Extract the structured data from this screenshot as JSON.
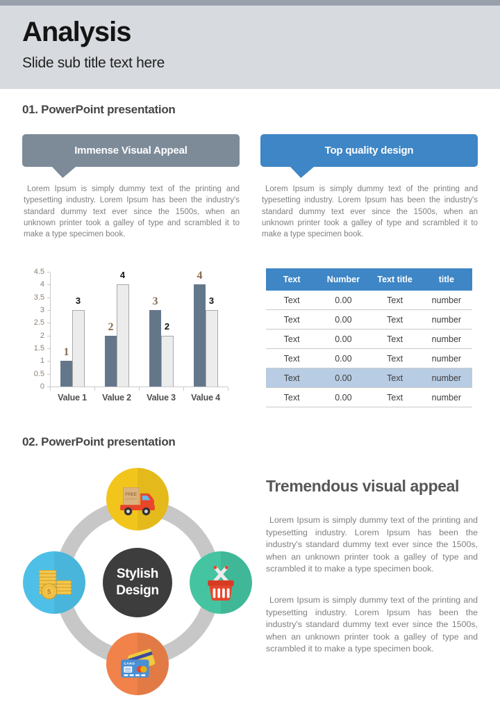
{
  "colors": {
    "top_strip": "#98a1ab",
    "header_bg": "#d7dade",
    "callout_gray": "#7d8b99",
    "callout_blue": "#3e86c6",
    "ring_gray": "#c7c7c7",
    "center_circle": "#3d3d3d",
    "heading_text": "#454545",
    "body_text": "#7f7f7f"
  },
  "page": {
    "title": "Analysis",
    "subtitle": "Slide sub title text here"
  },
  "section1": {
    "heading": "01. PowerPoint presentation",
    "left_callout": "Immense Visual Appeal",
    "right_callout": "Top quality design",
    "left_paragraph": "Lorem Ipsum is simply dummy text of the printing and typesetting industry. Lorem Ipsum has been the industry's standard dummy text ever since the 1500s, when an unknown printer took a galley of type and scrambled it to make a type specimen book.",
    "right_paragraph": "Lorem Ipsum is simply dummy text of the printing and typesetting industry. Lorem Ipsum has been the industry's standard dummy text ever since the 1500s, when an unknown printer took a galley of type and scrambled it to make a type specimen book."
  },
  "chart_data": {
    "type": "bar",
    "categories": [
      "Value 1",
      "Value 2",
      "Value 3",
      "Value 4"
    ],
    "series": [
      {
        "name": "series-dark",
        "color": "#64778a",
        "label_color": "#8c6b4f",
        "values": [
          1,
          2,
          3,
          4
        ]
      },
      {
        "name": "series-light",
        "color": "#ececec",
        "label_color": "#141414",
        "values": [
          3,
          4,
          2,
          3
        ]
      }
    ],
    "title": "",
    "xlabel": "",
    "ylabel": "",
    "ylim": [
      0,
      4.5
    ],
    "yticks": [
      0,
      0.5,
      1,
      1.5,
      2,
      2.5,
      3,
      3.5,
      4,
      4.5
    ],
    "grid": false,
    "legend": "none",
    "data_labels": true
  },
  "table": {
    "header_bg": "#3e86c6",
    "highlight_bg": "#b8cce4",
    "highlighted_row_index": 4,
    "headers": [
      "Text",
      "Number",
      "Text title",
      "title"
    ],
    "rows": [
      [
        "Text",
        "0.00",
        "Text",
        "number"
      ],
      [
        "Text",
        "0.00",
        "Text",
        "number"
      ],
      [
        "Text",
        "0.00",
        "Text",
        "number"
      ],
      [
        "Text",
        "0.00",
        "Text",
        "number"
      ],
      [
        "Text",
        "0.00",
        "Text",
        "number"
      ],
      [
        "Text",
        "0.00",
        "Text",
        "number"
      ]
    ]
  },
  "section2": {
    "heading": "02. PowerPoint presentation",
    "diagram": {
      "center_label_lines": [
        "Stylish",
        "Design"
      ],
      "nodes": [
        {
          "icon": "delivery-truck-icon",
          "bg": "#f2c51d"
        },
        {
          "icon": "coins-icon",
          "bg": "#4ec0e8"
        },
        {
          "icon": "shopping-basket-icon",
          "bg": "#44c4a0"
        },
        {
          "icon": "credit-card-icon",
          "bg": "#f0824a"
        }
      ],
      "icon_texts": {
        "free": "FREE",
        "delivery": "DELIVERY",
        "card": "CARD"
      }
    },
    "right_heading": "Tremendous visual appeal",
    "paragraphs": [
      "Lorem Ipsum is simply dummy text of the printing and typesetting industry. Lorem Ipsum has been the industry's standard dummy text ever since the 1500s, when an unknown printer took a galley of type and scrambled it to make a type specimen book.",
      "Lorem Ipsum is simply dummy text of the printing and typesetting industry. Lorem Ipsum has been the industry's standard dummy text ever since the 1500s, when an unknown printer took a galley of type and scrambled it to make a type specimen book."
    ]
  }
}
